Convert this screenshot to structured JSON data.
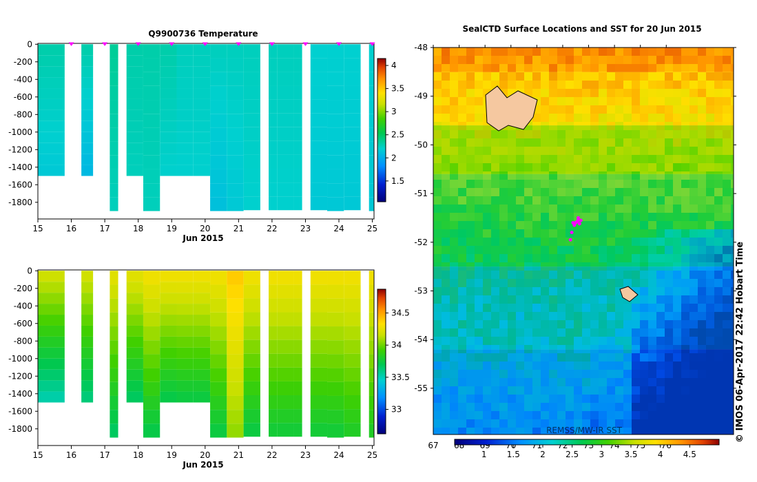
{
  "copyright": "© IMOS 06-Apr-2017 22:42 Hobart Time",
  "colors": {
    "magenta": "#ff00ff",
    "land": "#f5c8a0",
    "missing": "#ffffff"
  },
  "chart_data": [
    {
      "id": "temperature",
      "type": "heatmap",
      "title": "Q9900736  Temperature",
      "xlabel": "Jun 2015",
      "ylabel": "",
      "x_ticks": [
        "15",
        "16",
        "17",
        "18",
        "19",
        "20",
        "21",
        "22",
        "23",
        "24",
        "25"
      ],
      "xlim": [
        15,
        25.05
      ],
      "y_ticks": [
        "0",
        "-200",
        "-400",
        "-600",
        "-800",
        "-1000",
        "-1200",
        "-1400",
        "-1600",
        "-1800"
      ],
      "ylim": [
        -1990,
        10
      ],
      "colorbar": {
        "ticks": [
          "1.5",
          "2",
          "2.5",
          "3",
          "3.5",
          "4"
        ],
        "range": [
          1.05,
          4.15
        ]
      },
      "profile_marker_days": [
        16,
        17,
        18,
        19,
        20,
        21,
        22,
        23,
        24,
        25
      ],
      "profiles": [
        {
          "x0": 15.0,
          "x1": 15.8,
          "zmax": -1500,
          "surface": 2.3,
          "bottom": 2.15
        },
        {
          "x0": 16.3,
          "x1": 16.65,
          "zmax": -1500,
          "surface": 2.3,
          "bottom": 2.05
        },
        {
          "x0": 17.15,
          "x1": 17.4,
          "zmax": -1900,
          "surface": 2.35,
          "bottom": 2.25
        },
        {
          "x0": 17.65,
          "x1": 18.15,
          "zmax": -1500,
          "surface": 2.3,
          "bottom": 2.25
        },
        {
          "x0": 18.15,
          "x1": 18.65,
          "zmax": -1900,
          "surface": 2.3,
          "bottom": 2.25
        },
        {
          "x0": 18.65,
          "x1": 19.15,
          "zmax": -1500,
          "surface": 2.3,
          "bottom": 2.2
        },
        {
          "x0": 19.15,
          "x1": 19.65,
          "zmax": -1500,
          "surface": 2.25,
          "bottom": 2.2
        },
        {
          "x0": 19.65,
          "x1": 20.15,
          "zmax": -1500,
          "surface": 2.25,
          "bottom": 2.2
        },
        {
          "x0": 20.15,
          "x1": 20.65,
          "zmax": -1900,
          "surface": 2.25,
          "bottom": 2.1
        },
        {
          "x0": 20.65,
          "x1": 21.15,
          "zmax": -1900,
          "surface": 2.25,
          "bottom": 2.15
        },
        {
          "x0": 21.15,
          "x1": 21.65,
          "zmax": -1890,
          "surface": 2.25,
          "bottom": 2.2
        },
        {
          "x0": 21.9,
          "x1": 22.15,
          "zmax": -1890,
          "surface": 2.25,
          "bottom": 2.2
        },
        {
          "x0": 22.15,
          "x1": 22.65,
          "zmax": -1890,
          "surface": 2.25,
          "bottom": 2.2
        },
        {
          "x0": 22.65,
          "x1": 22.9,
          "zmax": -1890,
          "surface": 2.25,
          "bottom": 2.2
        },
        {
          "x0": 23.15,
          "x1": 23.65,
          "zmax": -1890,
          "surface": 2.2,
          "bottom": 2.15
        },
        {
          "x0": 23.65,
          "x1": 24.15,
          "zmax": -1900,
          "surface": 2.2,
          "bottom": 2.15
        },
        {
          "x0": 24.15,
          "x1": 24.65,
          "zmax": -1890,
          "surface": 2.2,
          "bottom": 2.15
        },
        {
          "x0": 24.9,
          "x1": 25.05,
          "zmax": -1900,
          "surface": 2.2,
          "bottom": 2.15
        }
      ]
    },
    {
      "id": "salinity",
      "type": "heatmap",
      "title": "",
      "xlabel": "Jun 2015",
      "ylabel": "",
      "x_ticks": [
        "15",
        "16",
        "17",
        "18",
        "19",
        "20",
        "21",
        "22",
        "23",
        "24",
        "25"
      ],
      "xlim": [
        15,
        25.05
      ],
      "y_ticks": [
        "0",
        "-200",
        "-400",
        "-600",
        "-800",
        "-1000",
        "-1200",
        "-1400",
        "-1600",
        "-1800"
      ],
      "ylim": [
        -1990,
        10
      ],
      "colorbar": {
        "ticks": [
          "33",
          "33.5",
          "34",
          "34.5"
        ],
        "range": [
          32.62,
          34.87
        ]
      },
      "profiles": [
        {
          "x0": 15.0,
          "x1": 15.8,
          "zmax": -1500,
          "surface": 34.2,
          "bottom": 33.5
        },
        {
          "x0": 16.3,
          "x1": 16.65,
          "zmax": -1500,
          "surface": 34.2,
          "bottom": 33.6
        },
        {
          "x0": 17.15,
          "x1": 17.4,
          "zmax": -1900,
          "surface": 34.25,
          "bottom": 33.65
        },
        {
          "x0": 17.65,
          "x1": 18.15,
          "zmax": -1500,
          "surface": 34.25,
          "bottom": 33.65
        },
        {
          "x0": 18.15,
          "x1": 18.65,
          "zmax": -1900,
          "surface": 34.3,
          "bottom": 33.7
        },
        {
          "x0": 18.65,
          "x1": 19.15,
          "zmax": -1500,
          "surface": 34.3,
          "bottom": 33.7
        },
        {
          "x0": 19.15,
          "x1": 19.65,
          "zmax": -1500,
          "surface": 34.3,
          "bottom": 33.72
        },
        {
          "x0": 19.65,
          "x1": 20.15,
          "zmax": -1500,
          "surface": 34.3,
          "bottom": 33.72
        },
        {
          "x0": 20.15,
          "x1": 20.65,
          "zmax": -1900,
          "surface": 34.3,
          "bottom": 33.72
        },
        {
          "x0": 20.65,
          "x1": 21.15,
          "zmax": -1900,
          "surface": 34.4,
          "bottom": 34.05
        },
        {
          "x0": 21.15,
          "x1": 21.65,
          "zmax": -1890,
          "surface": 34.3,
          "bottom": 33.72
        },
        {
          "x0": 21.9,
          "x1": 22.15,
          "zmax": -1890,
          "surface": 34.3,
          "bottom": 33.75
        },
        {
          "x0": 22.15,
          "x1": 22.65,
          "zmax": -1890,
          "surface": 34.3,
          "bottom": 33.75
        },
        {
          "x0": 22.65,
          "x1": 22.9,
          "zmax": -1890,
          "surface": 34.3,
          "bottom": 33.75
        },
        {
          "x0": 23.15,
          "x1": 23.65,
          "zmax": -1890,
          "surface": 34.3,
          "bottom": 33.75
        },
        {
          "x0": 23.65,
          "x1": 24.15,
          "zmax": -1900,
          "surface": 34.3,
          "bottom": 33.75
        },
        {
          "x0": 24.15,
          "x1": 24.65,
          "zmax": -1890,
          "surface": 34.3,
          "bottom": 33.8
        },
        {
          "x0": 24.9,
          "x1": 25.05,
          "zmax": -1900,
          "surface": 34.3,
          "bottom": 33.8
        }
      ]
    },
    {
      "id": "sst-map",
      "type": "heatmap",
      "title": "SealCTD Surface Locations and SST for 20 Jun 2015",
      "xlabel": "",
      "ylabel": "",
      "x_ticks": [
        "67",
        "68",
        "69",
        "70",
        "71",
        "72",
        "73",
        "74",
        "75",
        "76"
      ],
      "xlim": [
        67,
        78.6
      ],
      "y_ticks": [
        "-48",
        "-49",
        "-50",
        "-51",
        "-52",
        "-53",
        "-54",
        "-55"
      ],
      "ylim": [
        -55.95,
        -48
      ],
      "colorbar": {
        "ticks": [
          "1",
          "1.5",
          "2",
          "2.5",
          "3",
          "3.5",
          "4",
          "4.5"
        ],
        "range": [
          0.5,
          5.0
        ]
      },
      "sst_field_watermark": "REMSS/MW-IR SST",
      "sst_regions": [
        {
          "lat_from": -48,
          "lat_to": -48.5,
          "value": 4.3
        },
        {
          "lat_from": -48.5,
          "lat_to": -49.6,
          "value": 3.9
        },
        {
          "lat_from": -49.6,
          "lat_to": -50.6,
          "value": 3.2
        },
        {
          "lat_from": -50.6,
          "lat_to": -52.5,
          "value": 2.5
        },
        {
          "lat_from": -52.5,
          "lat_to": -54.2,
          "value": 1.8
        },
        {
          "lat_from": -54.2,
          "lat_to": -55.95,
          "value": 1.5
        }
      ],
      "seal_locations": [
        {
          "lon": 72.5,
          "lat": -51.6
        },
        {
          "lon": 72.6,
          "lat": -51.55
        },
        {
          "lon": 72.45,
          "lat": -51.65
        },
        {
          "lon": 72.55,
          "lat": -51.58
        },
        {
          "lon": 72.65,
          "lat": -51.62
        },
        {
          "lon": 72.4,
          "lat": -51.6
        },
        {
          "lon": 72.35,
          "lat": -51.8
        },
        {
          "lon": 72.3,
          "lat": -51.95
        },
        {
          "lon": 72.6,
          "lat": -51.5
        },
        {
          "lon": 72.7,
          "lat": -51.55
        }
      ]
    }
  ]
}
